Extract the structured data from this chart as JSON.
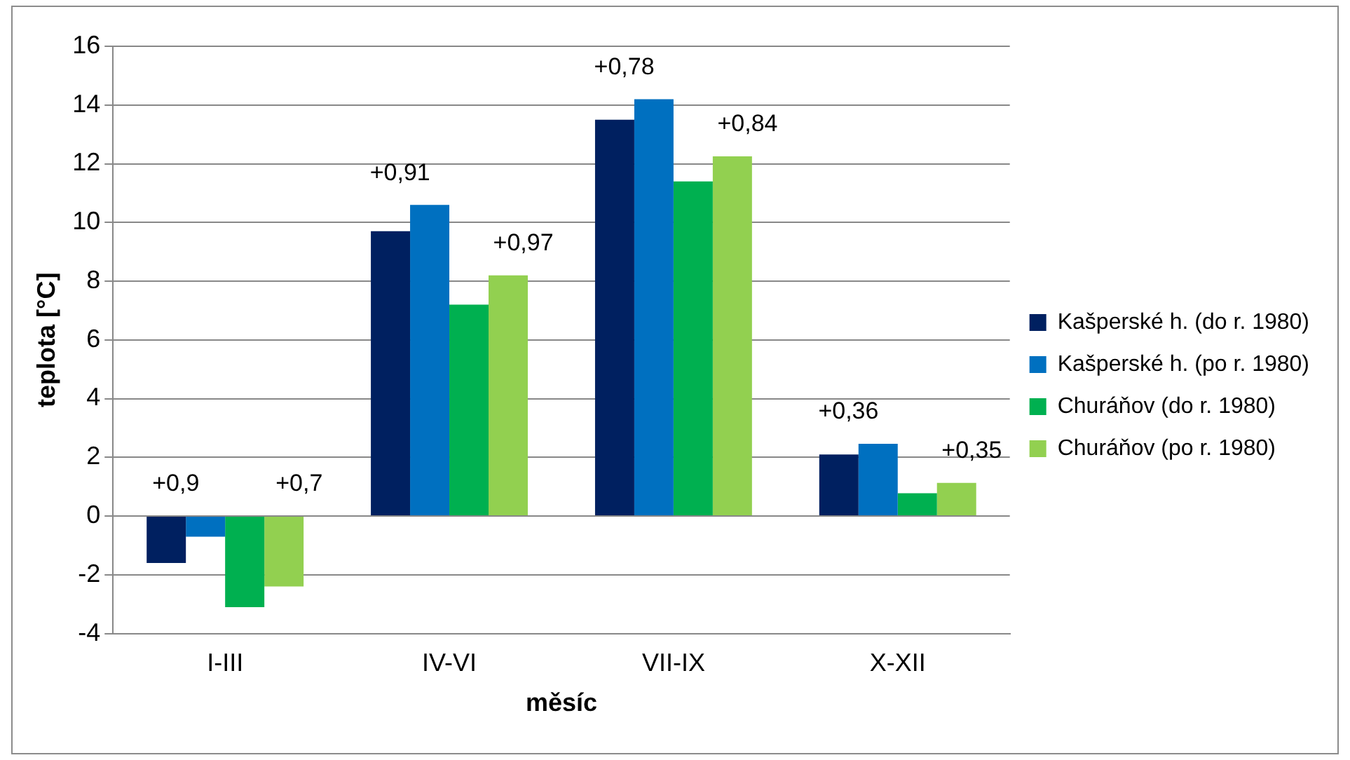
{
  "chart_data": {
    "type": "bar",
    "xlabel": "měsíc",
    "ylabel": "teplota [°C]",
    "categories": [
      "I-III",
      "IV-VI",
      "VII-IX",
      "X-XII"
    ],
    "series": [
      {
        "name": "Kašperské h. (do r. 1980)",
        "color": "#002060",
        "values": [
          -1.6,
          9.7,
          13.5,
          2.1
        ]
      },
      {
        "name": "Kašperské h. (po r. 1980)",
        "color": "#0070c0",
        "values": [
          -0.7,
          10.6,
          14.2,
          2.46
        ]
      },
      {
        "name": "Churáňov (do r. 1980)",
        "color": "#00b050",
        "values": [
          -3.1,
          7.2,
          11.4,
          0.78
        ]
      },
      {
        "name": "Churáňov (po r. 1980)",
        "color": "#92d050",
        "values": [
          -2.4,
          8.2,
          12.25,
          1.13
        ]
      }
    ],
    "ylim": [
      -4,
      16
    ],
    "yticks": [
      -4,
      -2,
      0,
      2,
      4,
      6,
      8,
      10,
      12,
      14,
      16
    ],
    "grid": "y",
    "legend": "right",
    "annotations": [
      "+0,9",
      "+0,7",
      "+0,91",
      "+0,97",
      "+0,78",
      "+0,84",
      "+0,36",
      "+0,35"
    ]
  }
}
